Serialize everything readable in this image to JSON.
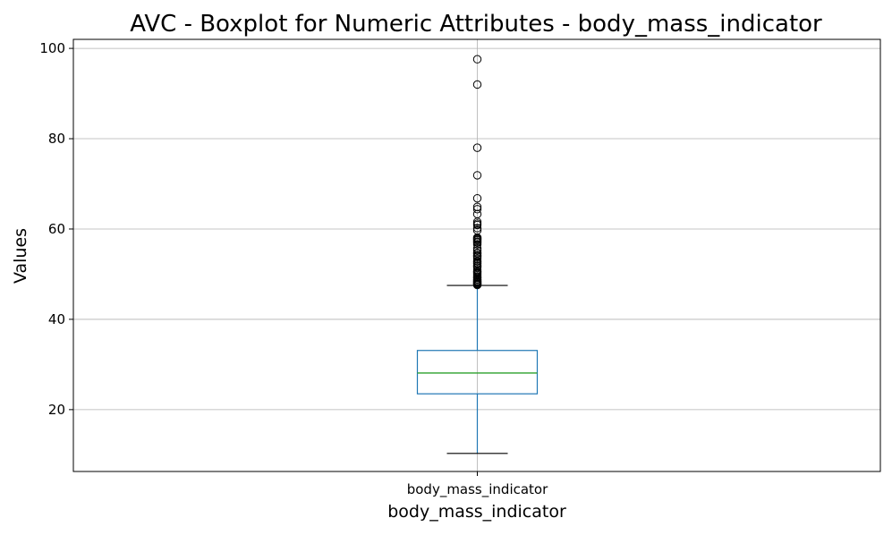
{
  "chart_data": {
    "type": "boxplot",
    "title": "AVC - Boxplot for Numeric Attributes - body_mass_indicator",
    "xlabel": "body_mass_indicator",
    "ylabel": "Values",
    "categories": [
      "body_mass_indicator"
    ],
    "ylim": [
      6.3,
      102
    ],
    "yticks": [
      20,
      40,
      60,
      80,
      100
    ],
    "grid": true,
    "box": {
      "whisker_low": 10.3,
      "q1": 23.5,
      "median": 28.1,
      "q3": 33.1,
      "whisker_high": 47.5
    },
    "outliers": [
      97.6,
      92.0,
      78.0,
      71.9,
      66.8,
      64.9,
      64.4,
      63.3,
      61.6,
      61.2,
      60.9,
      60.2,
      59.7,
      58.1,
      57.9,
      57.7,
      57.5,
      57.2,
      57.0,
      56.6,
      55.7,
      55.2,
      54.7,
      54.6,
      54.2,
      54.0,
      53.8,
      53.4,
      52.9,
      52.8,
      52.5,
      52.3,
      51.9,
      51.8,
      51.5,
      50.9,
      50.6,
      50.5,
      50.3,
      50.1,
      49.8,
      49.5,
      49.3,
      49.2,
      48.9,
      48.8,
      48.5,
      48.4,
      48.2,
      48.0,
      47.9,
      47.8,
      47.6
    ],
    "colors": {
      "box": "#1f77b4",
      "median": "#2ca02c",
      "caps": "#000000",
      "outlier": "#000000"
    }
  }
}
